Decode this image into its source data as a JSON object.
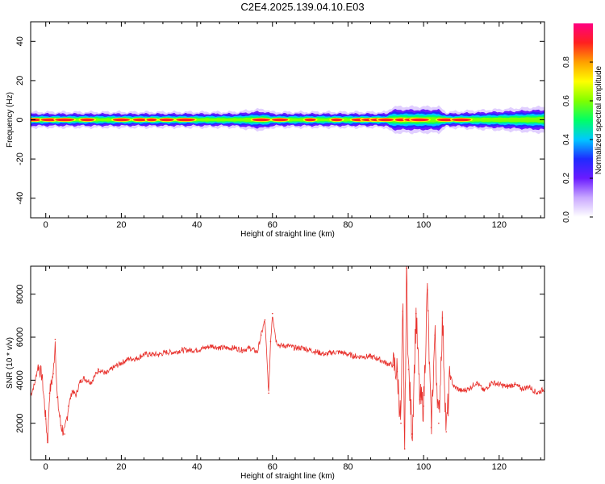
{
  "figure": {
    "title": "C2E4.2025.139.04.10.E03"
  },
  "colors": {
    "snr_line": "#e8322d",
    "axis": "#000000",
    "colormap": [
      "#ffffff",
      "#c9a8ff",
      "#6a1bff",
      "#1f2bff",
      "#00c8ff",
      "#00ff66",
      "#80ff00",
      "#ffff00",
      "#ffa000",
      "#ff2020",
      "#ff0080"
    ]
  },
  "chart_data": [
    {
      "type": "heatmap",
      "name": "spectrogram",
      "xlabel": "Height of straight line (km)",
      "ylabel": "Frequency (Hz)",
      "xlim": [
        -4,
        132
      ],
      "ylim": [
        -50,
        50
      ],
      "xticks": [
        0,
        20,
        40,
        60,
        80,
        100,
        120
      ],
      "yticks": [
        -40,
        -20,
        0,
        20,
        40
      ],
      "ytick_labels": [
        "-40",
        "-20",
        "0",
        "20",
        "40"
      ],
      "band_center_hz": 0,
      "band_halfwidth_hz": [
        [
          -4,
          3
        ],
        [
          0,
          3
        ],
        [
          5,
          3
        ],
        [
          10,
          3
        ],
        [
          20,
          3
        ],
        [
          30,
          3
        ],
        [
          40,
          3
        ],
        [
          50,
          3
        ],
        [
          56,
          4
        ],
        [
          58,
          4
        ],
        [
          60,
          3
        ],
        [
          70,
          3
        ],
        [
          80,
          3
        ],
        [
          90,
          3
        ],
        [
          92,
          5
        ],
        [
          95,
          5
        ],
        [
          100,
          5
        ],
        [
          104,
          5
        ],
        [
          106,
          3
        ],
        [
          120,
          4
        ],
        [
          132,
          5
        ]
      ],
      "hot_spots_km": [
        -3,
        1,
        5,
        11,
        20,
        25,
        28,
        32,
        37,
        57,
        62,
        70,
        77,
        83,
        86,
        88,
        90,
        94,
        97,
        99,
        106,
        110
      ],
      "colorbar": {
        "label": "Normalized spectral amplitude",
        "range": [
          0.0,
          1.0
        ],
        "ticks": [
          0.0,
          0.2,
          0.4,
          0.6,
          0.8
        ],
        "tick_labels": [
          "0.0",
          "0.2",
          "0.4",
          "0.6",
          "0.8"
        ]
      }
    },
    {
      "type": "line",
      "name": "snr",
      "xlabel": "Height of straight line (km)",
      "ylabel": "SNR (10 * v/v)",
      "xlim": [
        -4,
        132
      ],
      "ylim": [
        300,
        9300
      ],
      "xticks": [
        0,
        20,
        40,
        60,
        80,
        100,
        120
      ],
      "yticks": [
        2000,
        4000,
        6000,
        8000
      ],
      "ytick_labels": [
        "2000",
        "4000",
        "6000",
        "8000"
      ],
      "x": [
        -4,
        -3,
        -2,
        -1,
        0,
        0.5,
        1,
        2,
        2.5,
        3,
        4,
        5,
        6,
        7,
        8,
        9,
        10,
        12,
        14,
        16,
        18,
        20,
        22,
        24,
        26,
        28,
        30,
        32,
        34,
        36,
        38,
        40,
        42,
        44,
        46,
        48,
        50,
        52,
        54,
        56,
        57,
        58,
        59,
        59.5,
        60,
        61,
        62,
        64,
        66,
        68,
        70,
        72,
        74,
        76,
        78,
        80,
        82,
        84,
        86,
        88,
        90,
        92,
        93,
        94,
        94.5,
        95,
        95.5,
        96,
        97,
        98,
        99,
        100,
        101,
        102,
        103,
        104,
        105,
        106,
        107,
        108,
        110,
        112,
        114,
        116,
        118,
        120,
        122,
        124,
        126,
        128,
        130,
        132
      ],
      "y": [
        3300,
        3800,
        4700,
        4200,
        2200,
        1100,
        3400,
        4300,
        5900,
        3200,
        1900,
        1500,
        2800,
        3500,
        3300,
        3900,
        4100,
        3900,
        4500,
        4300,
        4600,
        4800,
        5000,
        5000,
        5200,
        5200,
        5200,
        5300,
        5300,
        5400,
        5400,
        5400,
        5500,
        5600,
        5500,
        5500,
        5500,
        5400,
        5500,
        5300,
        6100,
        6800,
        3400,
        5800,
        7100,
        5800,
        5600,
        5600,
        5500,
        5500,
        5400,
        5300,
        5200,
        5300,
        5300,
        5200,
        5100,
        5100,
        5100,
        5000,
        4800,
        4700,
        4400,
        2000,
        7200,
        800,
        9200,
        4500,
        1500,
        7100,
        3100,
        2800,
        8200,
        1800,
        6100,
        2000,
        6900,
        1600,
        4200,
        3700,
        3500,
        3600,
        3900,
        3500,
        3900,
        3800,
        3700,
        3800,
        3600,
        3700,
        3400,
        3600
      ]
    }
  ]
}
